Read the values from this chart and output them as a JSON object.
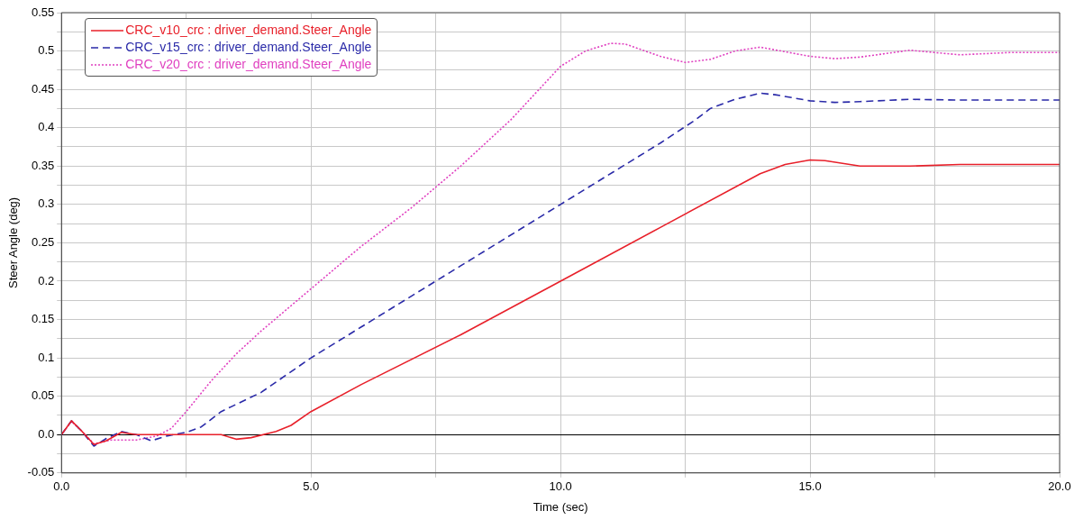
{
  "chart_data": {
    "type": "line",
    "xlabel": "Time (sec)",
    "ylabel": "Steer Angle (deg)",
    "xlim": [
      0,
      20
    ],
    "xticks": [
      {
        "value": 0,
        "label": "0.0"
      },
      {
        "value": 2.5,
        "label": null
      },
      {
        "value": 5,
        "label": "5.0"
      },
      {
        "value": 7.5,
        "label": null
      },
      {
        "value": 10,
        "label": "10.0"
      },
      {
        "value": 12.5,
        "label": null
      },
      {
        "value": 15,
        "label": "15.0"
      },
      {
        "value": 17.5,
        "label": null
      },
      {
        "value": 20,
        "label": "20.0"
      }
    ],
    "ylim": [
      -0.05,
      0.55
    ],
    "yticks": [
      -0.05,
      {
        "value": -0.025,
        "label": null
      },
      {
        "value": 0,
        "label": "0.0"
      },
      {
        "value": 0.025,
        "label": null
      },
      0.05,
      {
        "value": 0.075,
        "label": null
      },
      0.1,
      {
        "value": 0.125,
        "label": null
      },
      0.15,
      {
        "value": 0.175,
        "label": null
      },
      0.2,
      {
        "value": 0.225,
        "label": null
      },
      0.25,
      {
        "value": 0.275,
        "label": null
      },
      0.3,
      {
        "value": 0.325,
        "label": null
      },
      0.35,
      {
        "value": 0.375,
        "label": null
      },
      0.4,
      {
        "value": 0.425,
        "label": null
      },
      0.45,
      {
        "value": 0.475,
        "label": null
      },
      0.5,
      {
        "value": 0.525,
        "label": null
      },
      0.55
    ],
    "grid": true,
    "legend": "top left",
    "marker": "none",
    "series": [
      {
        "name": "CRC_v10_crc : driver_demand.Steer_Angle",
        "color": "#e8202a",
        "line_style": "solid",
        "x": [
          0,
          0.2,
          0.4,
          0.65,
          0.9,
          1.2,
          1.5,
          2,
          3.2,
          3.5,
          3.8,
          4.3,
          4.6,
          5,
          6,
          8,
          10,
          12,
          14,
          14.5,
          15,
          15.3,
          16,
          17,
          18,
          20
        ],
        "values": [
          0,
          0.018,
          0.005,
          -0.013,
          -0.008,
          0.003,
          0,
          0,
          0,
          -0.006,
          -0.004,
          0.004,
          0.012,
          0.03,
          0.065,
          0.13,
          0.2,
          0.27,
          0.34,
          0.352,
          0.358,
          0.357,
          0.35,
          0.35,
          0.352,
          0.352
        ]
      },
      {
        "name": "CRC_v15_crc : driver_demand.Steer_Angle",
        "color": "#2a2aa8",
        "line_style": "dashed",
        "x": [
          0,
          0.2,
          0.4,
          0.65,
          0.9,
          1.2,
          1.5,
          1.8,
          2.1,
          2.5,
          2.8,
          3.2,
          4,
          5,
          6,
          8,
          10,
          12,
          12.7,
          13,
          13.5,
          14,
          14.3,
          15,
          15.5,
          16,
          17,
          18,
          20
        ],
        "values": [
          0,
          0.018,
          0.005,
          -0.015,
          -0.005,
          0.004,
          0,
          -0.008,
          -0.002,
          0.003,
          0.01,
          0.03,
          0.055,
          0.1,
          0.14,
          0.22,
          0.3,
          0.38,
          0.41,
          0.425,
          0.437,
          0.445,
          0.443,
          0.435,
          0.433,
          0.434,
          0.437,
          0.436,
          0.436
        ]
      },
      {
        "name": "CRC_v20_crc : driver_demand.Steer_Angle",
        "color": "#e040c0",
        "line_style": "dotted",
        "x": [
          0,
          0.2,
          0.4,
          0.65,
          1,
          1.5,
          1.9,
          2.2,
          2.5,
          3,
          3.5,
          4,
          5,
          6,
          7,
          8,
          9,
          9.5,
          10,
          10.5,
          11,
          11.3,
          12,
          12.5,
          13,
          13.5,
          14,
          15,
          15.5,
          16,
          17,
          18,
          19,
          20
        ],
        "values": [
          0,
          0.017,
          0.005,
          -0.012,
          -0.007,
          -0.007,
          -0.002,
          0.008,
          0.03,
          0.07,
          0.105,
          0.135,
          0.19,
          0.245,
          0.295,
          0.35,
          0.41,
          0.445,
          0.48,
          0.5,
          0.51,
          0.509,
          0.493,
          0.485,
          0.489,
          0.5,
          0.505,
          0.493,
          0.49,
          0.492,
          0.501,
          0.495,
          0.498,
          0.498
        ]
      }
    ]
  }
}
